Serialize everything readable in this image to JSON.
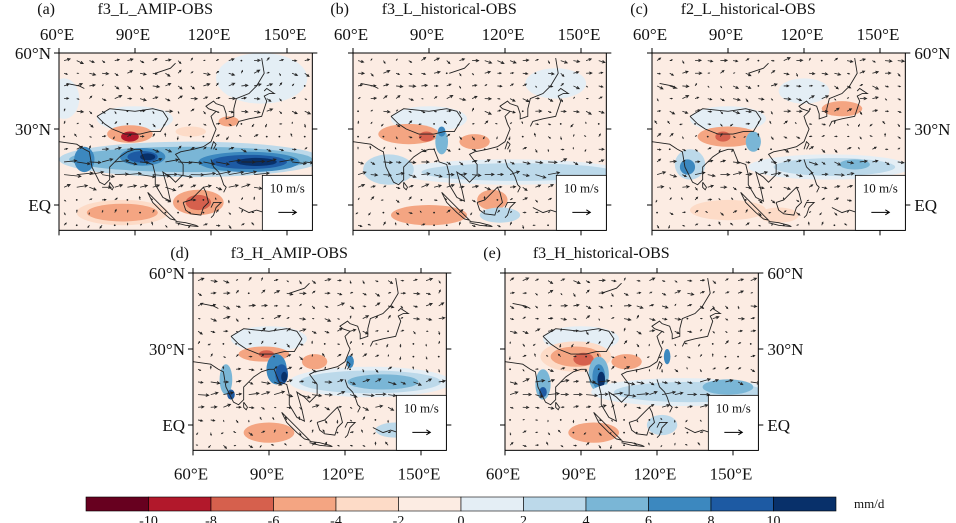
{
  "panels": [
    {
      "letter": "(a)",
      "title": "f3_L_AMIP-OBS",
      "lon_labels": "top",
      "lat_labels": "left",
      "ref_vector": "10 m/s"
    },
    {
      "letter": "(b)",
      "title": "f3_L_historical-OBS",
      "lon_labels": "top",
      "lat_labels": "none",
      "ref_vector": "10 m/s"
    },
    {
      "letter": "(c)",
      "title": "f2_L_historical-OBS",
      "lon_labels": "top",
      "lat_labels": "right",
      "ref_vector": "10 m/s"
    },
    {
      "letter": "(d)",
      "title": "f3_H_AMIP-OBS",
      "lon_labels": "bottom",
      "lat_labels": "left",
      "ref_vector": "10 m/s"
    },
    {
      "letter": "(e)",
      "title": "f3_H_historical-OBS",
      "lon_labels": "bottom",
      "lat_labels": "right",
      "ref_vector": "10 m/s"
    }
  ],
  "axes": {
    "lon_ticks": [
      "60°E",
      "90°E",
      "120°E",
      "150°E"
    ],
    "lat_ticks": [
      "60°N",
      "30°N",
      "EQ"
    ],
    "lon_range": [
      60,
      160
    ],
    "lat_range": [
      -10,
      60
    ]
  },
  "colorbar": {
    "unit": "mm/d",
    "levels": [
      "-10",
      "-8",
      "-6",
      "-4",
      "-2",
      "0",
      "2",
      "4",
      "6",
      "8",
      "10"
    ],
    "colors": [
      "#67001f",
      "#b2182b",
      "#d6604d",
      "#f4a582",
      "#fddbc7",
      "#fcece3",
      "#e4eef5",
      "#bcd9ea",
      "#7ab6d6",
      "#3c88bf",
      "#1d5aa3",
      "#08306a"
    ]
  },
  "colors": {
    "coastline": "#222222",
    "vector": "#222222",
    "frame": "#000000"
  }
}
